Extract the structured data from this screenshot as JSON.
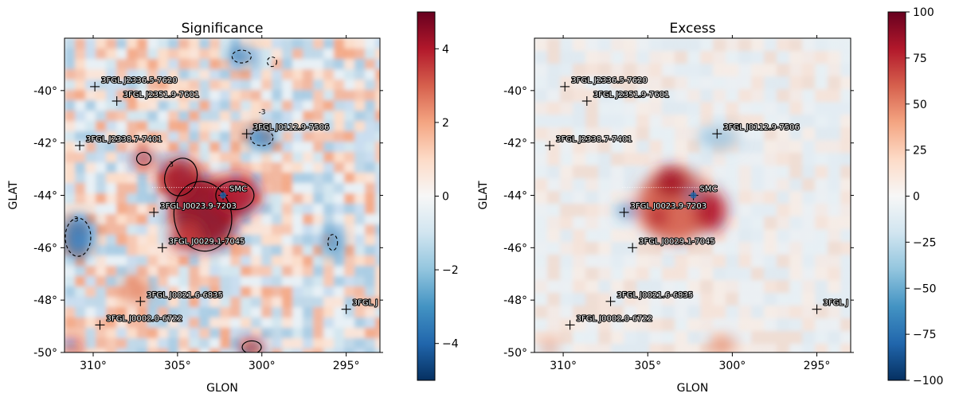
{
  "chart_data": [
    {
      "type": "heatmap",
      "title": "Significance",
      "xlabel": "GLON",
      "ylabel": "GLAT",
      "x_ticks": [
        "310°",
        "305°",
        "300°",
        "295°"
      ],
      "x_tick_values": [
        310,
        305,
        300,
        295
      ],
      "y_ticks": [
        "-40°",
        "-42°",
        "-44°",
        "-46°",
        "-48°",
        "-50°"
      ],
      "y_tick_values": [
        -40,
        -42,
        -44,
        -46,
        -48,
        -50
      ],
      "xlim": [
        311.7,
        293.0
      ],
      "ylim": [
        -50,
        -38
      ],
      "colorbar": {
        "ticks": [
          "4",
          "2",
          "0",
          "−2",
          "−4"
        ],
        "tick_values": [
          4,
          2,
          0,
          -2,
          -4
        ],
        "range": [
          -5,
          5
        ],
        "colormap": "RdBu_r"
      },
      "contour_labels": [
        "3",
        "-3"
      ],
      "sources": [
        {
          "label": "3FGL J2336.5-7620",
          "glon": 309.9,
          "glat": -39.85
        },
        {
          "label": "3FGL J2351.9-7601",
          "glon": 308.6,
          "glat": -40.4
        },
        {
          "label": "3FGL J0112.9-7506",
          "glon": 300.9,
          "glat": -41.65
        },
        {
          "label": "3FGL J2338.7-7401",
          "glon": 310.8,
          "glat": -42.1
        },
        {
          "label": "SMC",
          "glon": 302.3,
          "glat": -44.0
        },
        {
          "label": "3FGL J0023.9-7203",
          "glon": 306.4,
          "glat": -44.65
        },
        {
          "label": "3FGL J0029.1-7045",
          "glon": 305.9,
          "glat": -46.0
        },
        {
          "label": "3FGL J0021.6-6835",
          "glon": 307.2,
          "glat": -48.05
        },
        {
          "label": "3FGL J0002.0-6722",
          "glon": 309.6,
          "glat": -48.95
        },
        {
          "label": "3FGL J",
          "glon": 295.0,
          "glat": -48.35
        }
      ]
    },
    {
      "type": "heatmap",
      "title": "Excess",
      "xlabel": "GLON",
      "ylabel": "GLAT",
      "x_ticks": [
        "310°",
        "305°",
        "300°",
        "295°"
      ],
      "x_tick_values": [
        310,
        305,
        300,
        295
      ],
      "y_ticks": [
        "-40°",
        "-42°",
        "-44°",
        "-46°",
        "-48°",
        "-50°"
      ],
      "y_tick_values": [
        -40,
        -42,
        -44,
        -46,
        -48,
        -50
      ],
      "xlim": [
        311.7,
        293.0
      ],
      "ylim": [
        -50,
        -38
      ],
      "colorbar": {
        "ticks": [
          "100",
          "75",
          "50",
          "25",
          "0",
          "−25",
          "−50",
          "−75",
          "−100"
        ],
        "tick_values": [
          100,
          75,
          50,
          25,
          0,
          -25,
          -50,
          -75,
          -100
        ],
        "range": [
          -100,
          100
        ],
        "colormap": "RdBu_r"
      },
      "sources": [
        {
          "label": "3FGL J2336.5-7620",
          "glon": 309.9,
          "glat": -39.85
        },
        {
          "label": "3FGL J2351.9-7601",
          "glon": 308.6,
          "glat": -40.4
        },
        {
          "label": "3FGL J0112.9-7506",
          "glon": 300.9,
          "glat": -41.65
        },
        {
          "label": "3FGL J2338.7-7401",
          "glon": 310.8,
          "glat": -42.1
        },
        {
          "label": "SMC",
          "glon": 302.3,
          "glat": -44.0
        },
        {
          "label": "3FGL J0023.9-7203",
          "glon": 306.4,
          "glat": -44.65
        },
        {
          "label": "3FGL J0029.1-7045",
          "glon": 305.9,
          "glat": -46.0
        },
        {
          "label": "3FGL J0021.6-6835",
          "glon": 307.2,
          "glat": -48.05
        },
        {
          "label": "3FGL J0002.0-6722",
          "glon": 309.6,
          "glat": -48.95
        },
        {
          "label": "3FGL J",
          "glon": 295.0,
          "glat": -48.35
        }
      ]
    }
  ],
  "colors": {
    "map_low": "#053061",
    "map_mid": "#f7f7f7",
    "map_high": "#67001f",
    "contour": "#000000",
    "marker": "#000000"
  }
}
